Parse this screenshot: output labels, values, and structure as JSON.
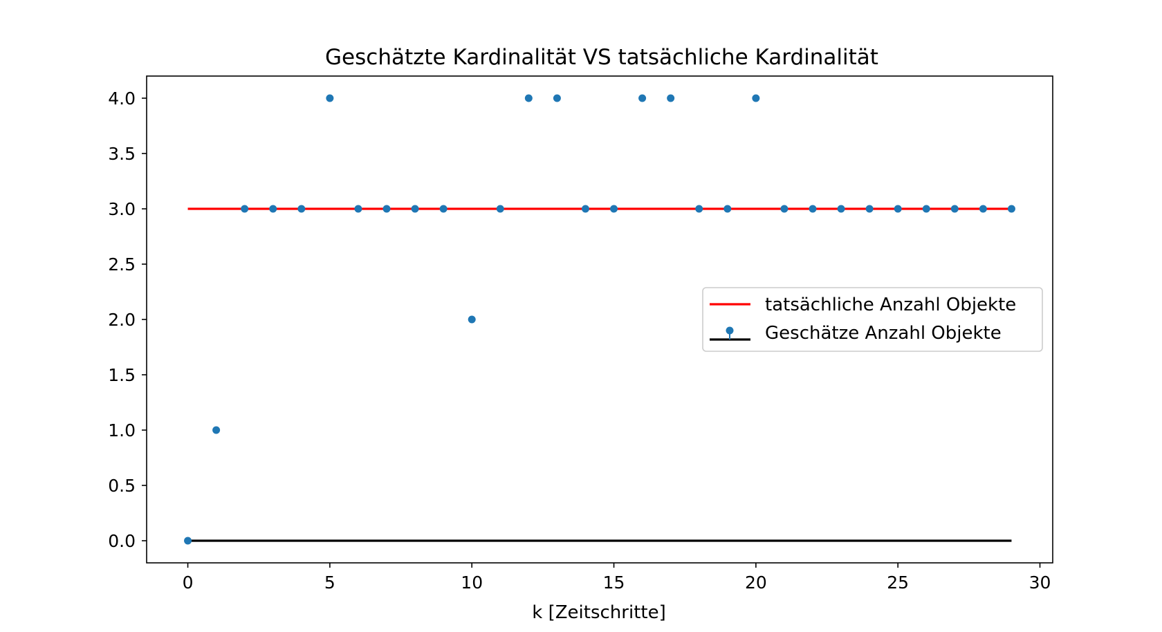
{
  "chart_data": {
    "type": "scatter",
    "title": "Geschätzte Kardinalität VS tatsächliche Kardinalität",
    "xlabel": "k [Zeitschritte]",
    "ylabel": "",
    "xlim": [
      -1.45,
      30.45
    ],
    "ylim": [
      -0.2,
      4.2
    ],
    "xticks": [
      0,
      5,
      10,
      15,
      20,
      25,
      30
    ],
    "xtick_labels": [
      "0",
      "5",
      "10",
      "15",
      "20",
      "25",
      "30"
    ],
    "yticks": [
      0.0,
      0.5,
      1.0,
      1.5,
      2.0,
      2.5,
      3.0,
      3.5,
      4.0
    ],
    "ytick_labels": [
      "0.0",
      "0.5",
      "1.0",
      "1.5",
      "2.0",
      "2.5",
      "3.0",
      "3.5",
      "4.0"
    ],
    "grid": false,
    "legend_position": "center-right",
    "series": [
      {
        "name": "tatsächliche Anzahl Objekte",
        "kind": "line",
        "color": "#ff0000",
        "x": [
          0,
          29
        ],
        "y": [
          3,
          3
        ]
      },
      {
        "name": "Geschätze Anzahl Objekte",
        "kind": "stem",
        "color": "#1f77b4",
        "baseline_color": "#000000",
        "x": [
          0,
          1,
          2,
          3,
          4,
          5,
          6,
          7,
          8,
          9,
          10,
          11,
          12,
          13,
          14,
          15,
          16,
          17,
          18,
          19,
          20,
          21,
          22,
          23,
          24,
          25,
          26,
          27,
          28,
          29
        ],
        "y": [
          0,
          1,
          3,
          3,
          3,
          4,
          3,
          3,
          3,
          3,
          2,
          3,
          4,
          4,
          3,
          3,
          4,
          4,
          3,
          3,
          4,
          3,
          3,
          3,
          3,
          3,
          3,
          3,
          3,
          3
        ]
      }
    ]
  }
}
